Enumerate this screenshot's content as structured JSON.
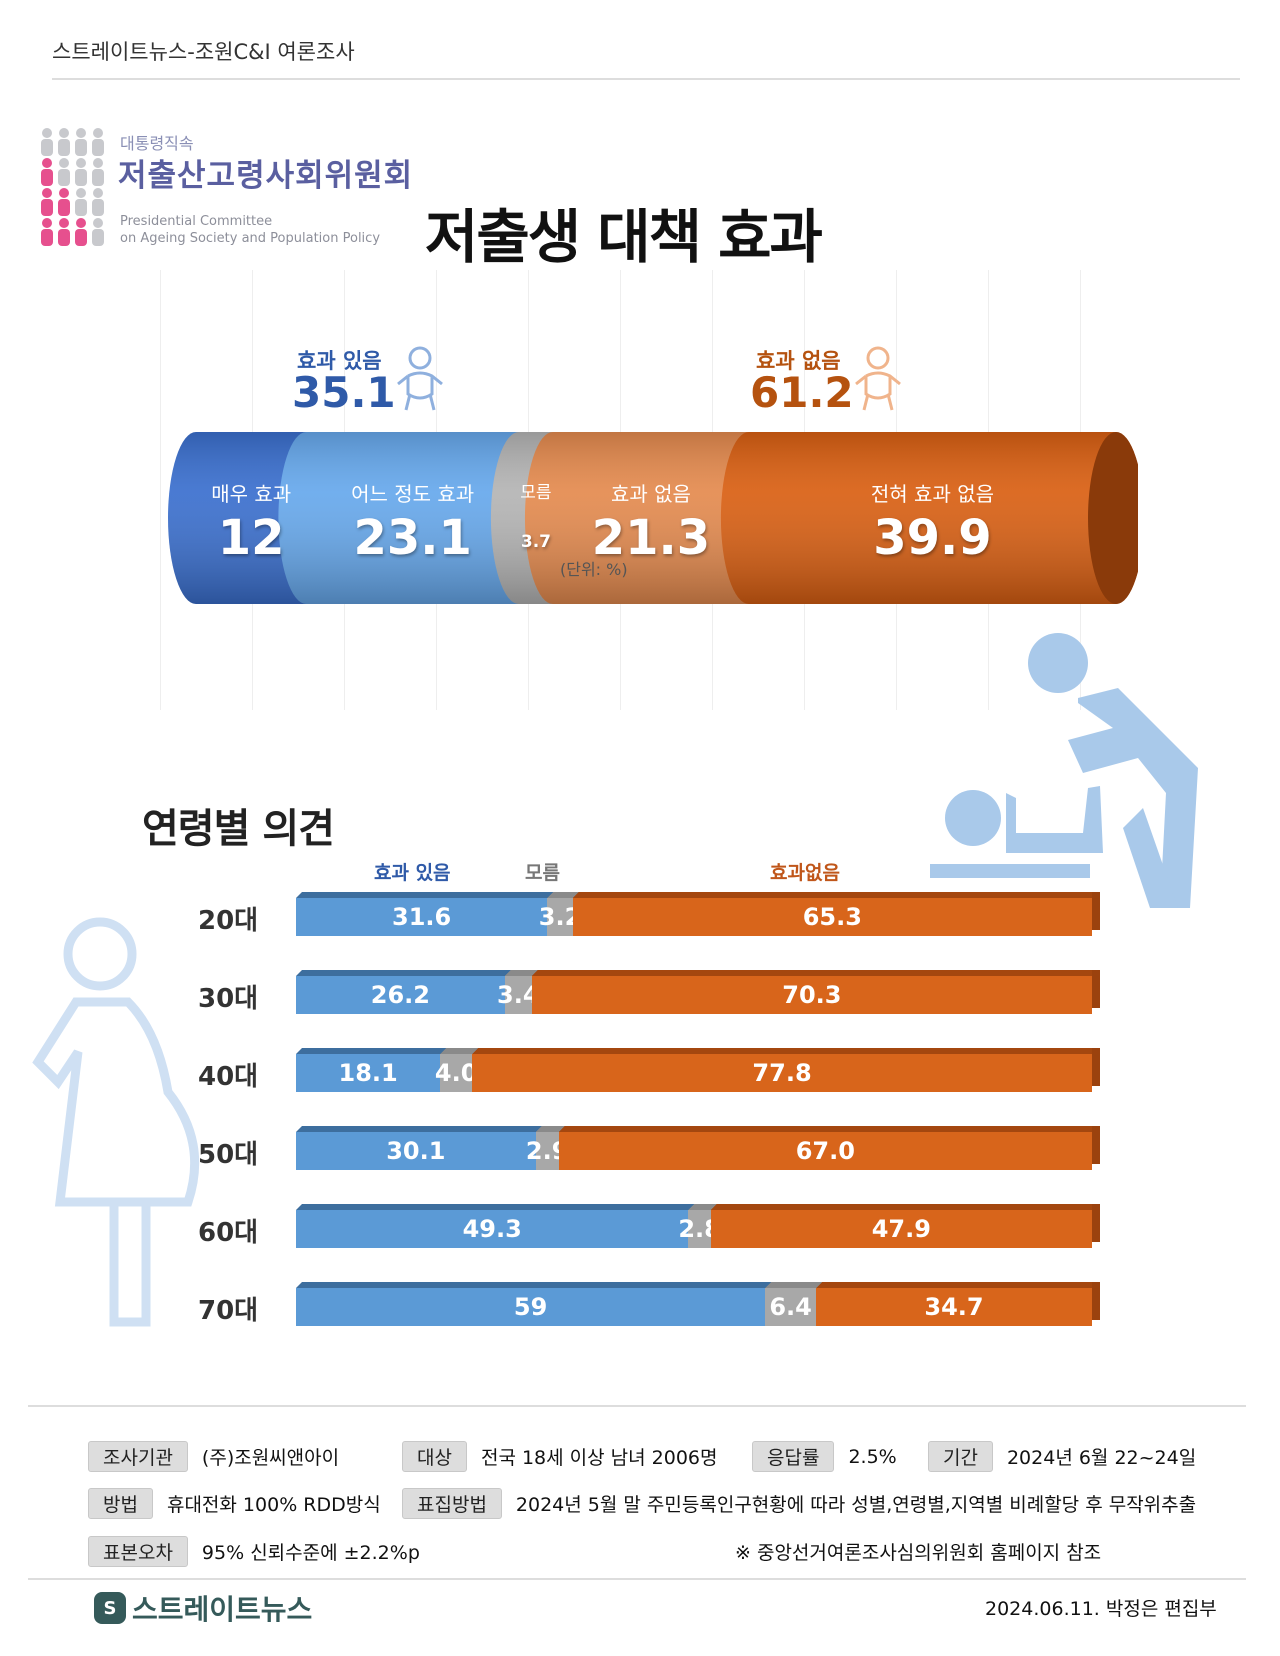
{
  "header": {
    "source": "스트레이트뉴스-조원C&I 여론조사"
  },
  "logo": {
    "small": "대통령직속",
    "big": "저출산고령사회위원회",
    "en1": "Presidential Committee",
    "en2": "on Ageing Society and Population Policy"
  },
  "title": "저출생 대책 효과",
  "summary": [
    {
      "label": "효과 있음",
      "value": "35.1",
      "color": "#2f5aa8",
      "icon": "baby-icon"
    },
    {
      "label": "효과 없음",
      "value": "61.2",
      "color": "#b5520f",
      "icon": "baby-icon"
    }
  ],
  "chart_data": [
    {
      "type": "bar",
      "orientation": "horizontal-stacked",
      "categories": [
        "매우 효과",
        "어느 정도 효과",
        "모름",
        "효과 없음",
        "전혀 효과 없음"
      ],
      "values": [
        12,
        23.1,
        3.7,
        21.3,
        39.9
      ],
      "value_labels": [
        "12",
        "23.1",
        "3.7",
        "21.3",
        "39.9"
      ],
      "colors": [
        "#3a6fce",
        "#66a8ec",
        "#b4b4b4",
        "#e48a4e",
        "#d95f12"
      ],
      "unit_note": "(단위: %)"
    },
    {
      "type": "bar",
      "orientation": "horizontal-stacked",
      "title": "연령별 의견",
      "legend": [
        "효과 있음",
        "모름",
        "효과없음"
      ],
      "colors": [
        "#5b9ad6",
        "#a8a8a8",
        "#d8651b"
      ],
      "categories": [
        "20대",
        "30대",
        "40대",
        "50대",
        "60대",
        "70대"
      ],
      "series": [
        {
          "name": "효과 있음",
          "values": [
            31.6,
            26.2,
            18.1,
            30.1,
            49.3,
            59
          ],
          "labels": [
            "31.6",
            "26.2",
            "18.1",
            "30.1",
            "49.3",
            "59"
          ]
        },
        {
          "name": "모름",
          "values": [
            3.2,
            3.4,
            4.0,
            2.9,
            2.8,
            6.4
          ],
          "labels": [
            "3.2",
            "3.4",
            "4.0",
            "2.9",
            "2.8",
            "6.4"
          ]
        },
        {
          "name": "효과없음",
          "values": [
            65.3,
            70.3,
            77.8,
            67.0,
            47.9,
            34.7
          ],
          "labels": [
            "65.3",
            "70.3",
            "77.8",
            "67.0",
            "47.9",
            "34.7"
          ]
        }
      ]
    }
  ],
  "footer": {
    "rows": [
      [
        {
          "tag": "조사기관",
          "text": "(주)조원씨앤아이"
        },
        {
          "tag": "대상",
          "text": "전국 18세 이상 남녀 2006명"
        },
        {
          "tag": "응답률",
          "text": "2.5%"
        },
        {
          "tag": "기간",
          "text": "2024년  6월 22~24일"
        }
      ],
      [
        {
          "tag": "방법",
          "text": "휴대전화 100% RDD방식"
        },
        {
          "tag": "표집방법",
          "text": "2024년 5월 말 주민등록인구현황에 따라 성별,연령별,지역별 비례할당 후 무작위추출"
        }
      ],
      [
        {
          "tag": "표본오차",
          "text": "95% 신뢰수준에 ±2.2%p"
        }
      ]
    ],
    "note": "※ 중앙선거여론조사심의위원회 홈페이지 참조",
    "brand": "스트레이트뉴스",
    "byline": "2024.06.11. 박정은 편집부"
  }
}
